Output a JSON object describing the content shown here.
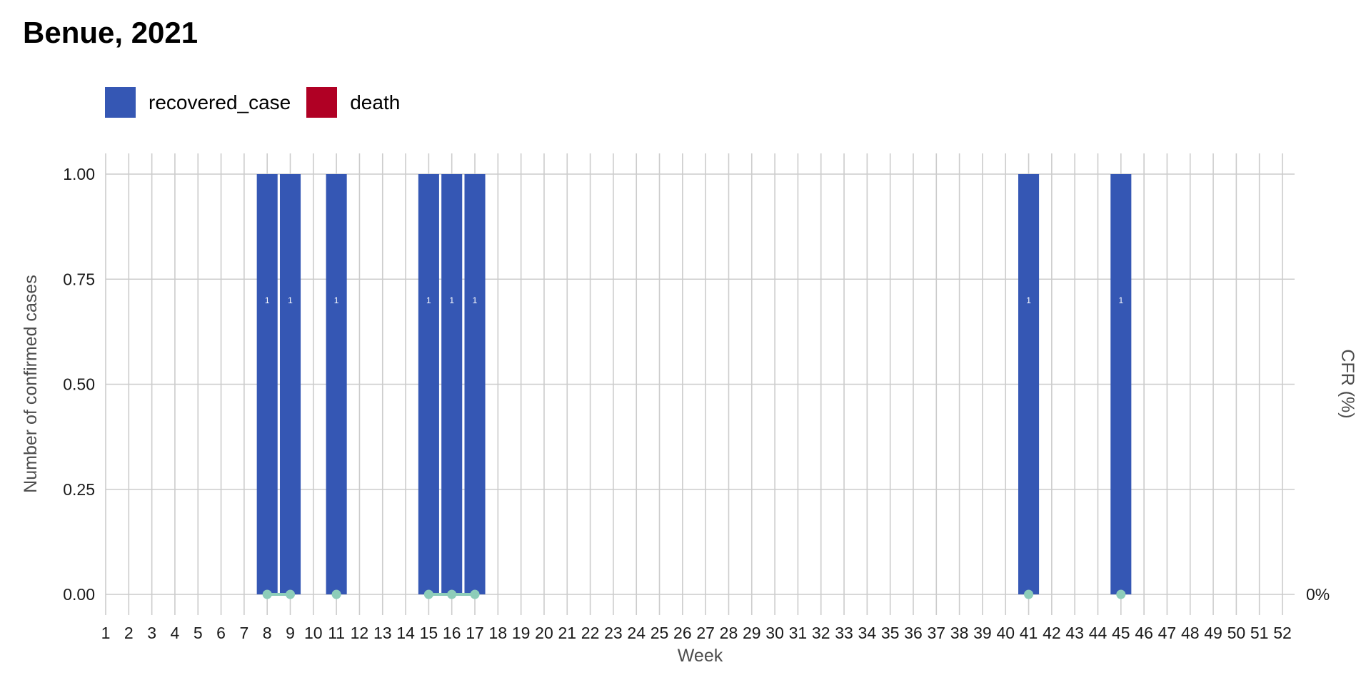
{
  "title": "Benue, 2021",
  "legend": {
    "items": [
      {
        "label": "recovered_case",
        "color": "#3557B4"
      },
      {
        "label": "death",
        "color": "#B00024"
      }
    ]
  },
  "chart_data": {
    "type": "bar",
    "stacked": true,
    "xlabel": "Week",
    "ylabel": "Number of confirmed cases",
    "y2label": "CFR (%)",
    "categories": [
      1,
      2,
      3,
      4,
      5,
      6,
      7,
      8,
      9,
      10,
      11,
      12,
      13,
      14,
      15,
      16,
      17,
      18,
      19,
      20,
      21,
      22,
      23,
      24,
      25,
      26,
      27,
      28,
      29,
      30,
      31,
      32,
      33,
      34,
      35,
      36,
      37,
      38,
      39,
      40,
      41,
      42,
      43,
      44,
      45,
      46,
      47,
      48,
      49,
      50,
      51,
      52
    ],
    "ylim": [
      0,
      1
    ],
    "yticks": [
      "0.00",
      "0.25",
      "0.50",
      "0.75",
      "1.00"
    ],
    "y2ticks": [
      "0%"
    ],
    "series": [
      {
        "name": "recovered_case",
        "color": "#3557B4",
        "points": [
          {
            "week": 8,
            "value": 1
          },
          {
            "week": 9,
            "value": 1
          },
          {
            "week": 11,
            "value": 1
          },
          {
            "week": 15,
            "value": 1
          },
          {
            "week": 16,
            "value": 1
          },
          {
            "week": 17,
            "value": 1
          },
          {
            "week": 41,
            "value": 1
          },
          {
            "week": 45,
            "value": 1
          }
        ]
      },
      {
        "name": "death",
        "color": "#B00024",
        "points": []
      }
    ],
    "bar_labels": [
      {
        "week": 8,
        "label": "1"
      },
      {
        "week": 9,
        "label": "1"
      },
      {
        "week": 11,
        "label": "1"
      },
      {
        "week": 15,
        "label": "1"
      },
      {
        "week": 16,
        "label": "1"
      },
      {
        "week": 17,
        "label": "1"
      },
      {
        "week": 41,
        "label": "1"
      },
      {
        "week": 45,
        "label": "1"
      }
    ],
    "cfr_line": {
      "color": "#8DCDB9",
      "points": [
        {
          "week": 8,
          "value": 0
        },
        {
          "week": 9,
          "value": 0
        },
        {
          "week": 11,
          "value": 0
        },
        {
          "week": 15,
          "value": 0
        },
        {
          "week": 16,
          "value": 0
        },
        {
          "week": 17,
          "value": 0
        },
        {
          "week": 41,
          "value": 0
        },
        {
          "week": 45,
          "value": 0
        }
      ]
    },
    "grid": true,
    "legend_position": "top-left"
  }
}
